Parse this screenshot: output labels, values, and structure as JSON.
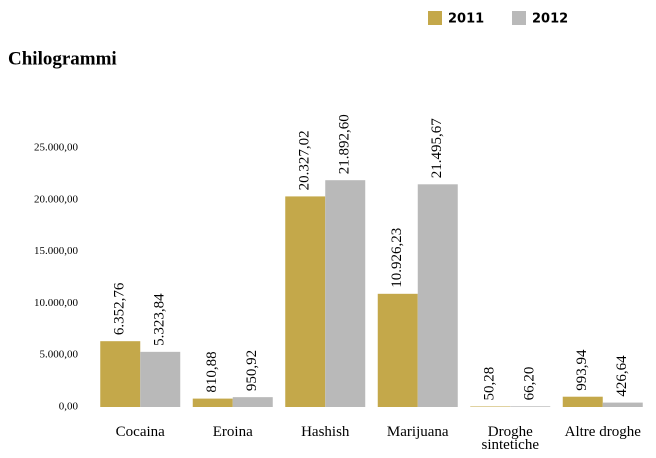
{
  "chart_data": {
    "type": "bar",
    "title": "Chilogrammi",
    "categories": [
      "Cocaina",
      "Eroina",
      "Hashish",
      "Marijuana",
      "Droghe sintetiche",
      "Altre droghe"
    ],
    "series": [
      {
        "name": "2011",
        "color": "#c4a84a",
        "values": [
          6352.76,
          810.88,
          20327.02,
          10926.23,
          50.28,
          993.94
        ],
        "value_labels": [
          "6.352,76",
          "810,88",
          "20.327,02",
          "10.926,23",
          "50,28",
          "993,94"
        ]
      },
      {
        "name": "2012",
        "color": "#b9b9b9",
        "values": [
          5323.84,
          950.92,
          21892.6,
          21495.67,
          66.2,
          426.64
        ],
        "value_labels": [
          "5.323,84",
          "950,92",
          "21.892,60",
          "21.495,67",
          "66,20",
          "426,64"
        ]
      }
    ],
    "ylim": [
      0,
      25000
    ],
    "yticks": [
      {
        "value": 0,
        "label": "0,00"
      },
      {
        "value": 5000,
        "label": "5.000,00"
      },
      {
        "value": 10000,
        "label": "10.000,00"
      },
      {
        "value": 15000,
        "label": "15.000,00"
      },
      {
        "value": 20000,
        "label": "20.000,00"
      },
      {
        "value": 25000,
        "label": "25.000,00"
      }
    ],
    "grid": false,
    "legend": "top-right"
  }
}
